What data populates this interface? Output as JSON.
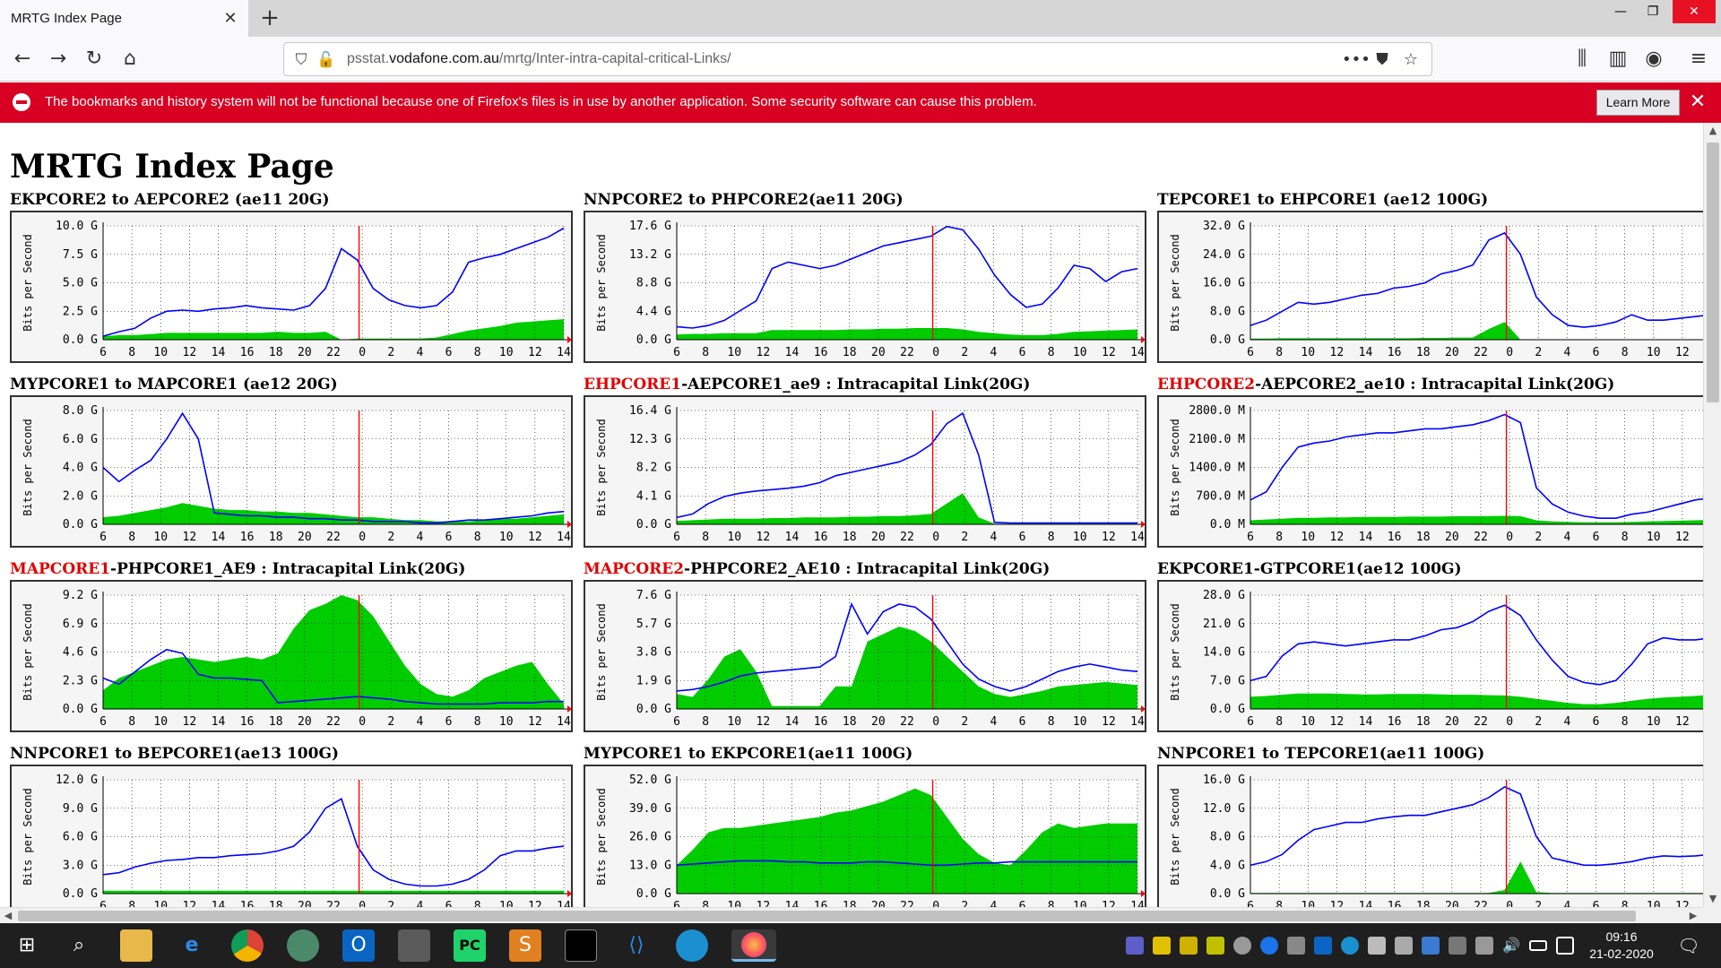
{
  "browser": {
    "tab_title": "MRTG Index Page",
    "url_prefix": "psstat.",
    "url_domain": "vodafone.com.au",
    "url_path": "/mrtg/Inter-intra-capital-critical-Links/"
  },
  "notification": {
    "message": "The bookmarks and history system will not be functional because one of Firefox's files is in use by another application. Some security software can cause this problem.",
    "button": "Learn More"
  },
  "page": {
    "title": "MRTG Index Page"
  },
  "axis": {
    "ylabel": "Bits per Second",
    "x_ticks": [
      "6",
      "8",
      "10",
      "12",
      "14",
      "16",
      "18",
      "20",
      "22",
      "0",
      "2",
      "4",
      "6",
      "8",
      "10",
      "12",
      "14"
    ]
  },
  "chart_data": [
    {
      "type": "area",
      "title_prefix": "",
      "title_rest": "EKPCORE2 to AEPCORE2 (ae11 20G)",
      "y_ticks": [
        "10.0 G",
        "7.5 G",
        "5.0 G",
        "2.5 G",
        "0.0 G"
      ],
      "series": [
        {
          "values": [
            0.3,
            0.7,
            1.0,
            1.9,
            2.5,
            2.6,
            2.5,
            2.7,
            2.8,
            3.0,
            2.8,
            2.7,
            2.6,
            3.0,
            4.5,
            8.0,
            7.0,
            4.5,
            3.5,
            3.0,
            2.8,
            3.0,
            4.2,
            6.8,
            7.2,
            7.5,
            8.0,
            8.5,
            9.0,
            9.8
          ]
        },
        {
          "values": [
            0.3,
            0.4,
            0.4,
            0.5,
            0.6,
            0.6,
            0.6,
            0.6,
            0.6,
            0.6,
            0.6,
            0.7,
            0.6,
            0.6,
            0.7,
            0.0,
            0.1,
            0.1,
            0.1,
            0.1,
            0.1,
            0.2,
            0.5,
            0.8,
            1.0,
            1.2,
            1.5,
            1.6,
            1.7,
            1.8
          ]
        }
      ]
    },
    {
      "type": "area",
      "title_prefix": "",
      "title_rest": "NNPCORE2 to PHPCORE2(ae11 20G)",
      "y_ticks": [
        "17.6 G",
        "13.2 G",
        "8.8 G",
        "4.4 G",
        "0.0 G"
      ],
      "series": [
        {
          "values": [
            2.0,
            1.8,
            2.2,
            3.0,
            4.5,
            6.0,
            11.0,
            12.0,
            11.5,
            11.0,
            11.5,
            12.5,
            13.5,
            14.5,
            15.0,
            15.5,
            16.0,
            17.5,
            17.0,
            14.0,
            10.0,
            7.0,
            5.0,
            5.5,
            8.0,
            11.5,
            11.0,
            9.0,
            10.5,
            11.0
          ]
        },
        {
          "values": [
            0.8,
            0.9,
            0.9,
            1.0,
            1.0,
            1.0,
            1.5,
            1.5,
            1.5,
            1.5,
            1.5,
            1.6,
            1.6,
            1.7,
            1.7,
            1.8,
            1.8,
            1.8,
            1.6,
            1.2,
            1.0,
            0.8,
            0.7,
            0.7,
            0.9,
            1.2,
            1.3,
            1.4,
            1.5,
            1.6
          ]
        }
      ]
    },
    {
      "type": "area",
      "title_prefix": "",
      "title_rest": "TEPCORE1 to EHPCORE1 (ae12 100G)",
      "y_ticks": [
        "32.0 G",
        "24.0 G",
        "16.0 G",
        "8.0 G",
        "0.0 G"
      ],
      "series": [
        {
          "values": [
            4.0,
            5.5,
            8.0,
            10.5,
            10.0,
            10.5,
            11.5,
            12.5,
            13.0,
            14.5,
            15.0,
            16.0,
            18.5,
            19.5,
            21.0,
            28.0,
            30.0,
            24.0,
            12.0,
            7.0,
            4.0,
            3.5,
            4.0,
            5.0,
            7.0,
            5.5,
            5.5,
            6.0,
            6.5,
            7.0
          ]
        },
        {
          "values": [
            0.3,
            0.3,
            0.4,
            0.4,
            0.4,
            0.4,
            0.4,
            0.4,
            0.4,
            0.4,
            0.4,
            0.5,
            0.5,
            0.6,
            0.6,
            3.0,
            5.0,
            0.0,
            0.0,
            0.0,
            0.0,
            0.0,
            0.0,
            0.0,
            0.0,
            0.0,
            0.0,
            0.0,
            0.0,
            0.0
          ]
        }
      ]
    },
    {
      "type": "area",
      "title_prefix": "",
      "title_rest": "MYPCORE1 to MAPCORE1 (ae12 20G)",
      "y_ticks": [
        "8.0 G",
        "6.0 G",
        "4.0 G",
        "2.0 G",
        "0.0 G"
      ],
      "series": [
        {
          "values": [
            4.0,
            3.0,
            3.8,
            4.5,
            6.0,
            7.8,
            6.0,
            0.8,
            0.7,
            0.6,
            0.6,
            0.5,
            0.5,
            0.4,
            0.4,
            0.3,
            0.3,
            0.2,
            0.2,
            0.2,
            0.1,
            0.1,
            0.2,
            0.3,
            0.3,
            0.4,
            0.5,
            0.6,
            0.8,
            0.9
          ]
        },
        {
          "values": [
            0.5,
            0.6,
            0.8,
            1.0,
            1.2,
            1.5,
            1.3,
            1.1,
            1.0,
            1.0,
            0.9,
            0.9,
            0.8,
            0.8,
            0.7,
            0.6,
            0.5,
            0.5,
            0.4,
            0.3,
            0.3,
            0.2,
            0.2,
            0.2,
            0.3,
            0.4,
            0.4,
            0.5,
            0.6,
            0.7
          ]
        }
      ]
    },
    {
      "type": "area",
      "title_prefix": "EHPCORE1",
      "title_rest": "-AEPCORE1_ae9 : Intracapital Link(20G)",
      "y_ticks": [
        "16.4 G",
        "12.3 G",
        "8.2 G",
        "4.1 G",
        "0.0 G"
      ],
      "series": [
        {
          "values": [
            1.0,
            1.5,
            3.0,
            4.0,
            4.5,
            4.8,
            5.0,
            5.2,
            5.5,
            6.0,
            7.0,
            7.5,
            8.0,
            8.5,
            9.0,
            10.0,
            11.5,
            14.5,
            16.0,
            10.0,
            0.3,
            0.2,
            0.2,
            0.2,
            0.2,
            0.2,
            0.2,
            0.2,
            0.2,
            0.2
          ]
        },
        {
          "values": [
            0.5,
            0.6,
            0.7,
            0.8,
            0.8,
            0.8,
            0.9,
            0.9,
            1.0,
            1.0,
            1.0,
            1.1,
            1.1,
            1.2,
            1.2,
            1.3,
            1.5,
            3.0,
            4.5,
            1.0,
            0.1,
            0.1,
            0.1,
            0.1,
            0.1,
            0.1,
            0.1,
            0.1,
            0.1,
            0.1
          ]
        }
      ]
    },
    {
      "type": "area",
      "title_prefix": "EHPCORE2",
      "title_rest": "-AEPCORE2_ae10 : Intracapital Link(20G)",
      "y_ticks": [
        "2800.0 M",
        "2100.0 M",
        "1400.0 M",
        "700.0 M",
        "0.0 M"
      ],
      "series": [
        {
          "values": [
            600,
            800,
            1400,
            1900,
            2000,
            2050,
            2150,
            2200,
            2250,
            2250,
            2300,
            2350,
            2350,
            2400,
            2450,
            2550,
            2700,
            2500,
            900,
            500,
            300,
            200,
            150,
            150,
            250,
            300,
            400,
            500,
            600,
            650
          ]
        },
        {
          "values": [
            100,
            120,
            140,
            160,
            160,
            170,
            170,
            180,
            180,
            180,
            190,
            190,
            190,
            200,
            200,
            200,
            210,
            200,
            100,
            70,
            60,
            50,
            50,
            50,
            60,
            70,
            80,
            90,
            100,
            110
          ]
        }
      ]
    },
    {
      "type": "area",
      "title_prefix": "MAPCORE1",
      "title_rest": "-PHPCORE1_AE9 : Intracapital Link(20G)",
      "y_ticks": [
        "9.2 G",
        "6.9 G",
        "4.6 G",
        "2.3 G",
        "0.0 G"
      ],
      "series": [
        {
          "values": [
            2.5,
            2.0,
            3.0,
            4.0,
            4.8,
            4.5,
            2.8,
            2.5,
            2.5,
            2.4,
            2.3,
            0.5,
            0.6,
            0.7,
            0.8,
            0.9,
            1.0,
            0.9,
            0.8,
            0.6,
            0.5,
            0.4,
            0.4,
            0.4,
            0.4,
            0.5,
            0.5,
            0.5,
            0.6,
            0.6
          ]
        },
        {
          "values": [
            1.5,
            2.5,
            3.0,
            3.5,
            4.0,
            4.2,
            4.0,
            3.8,
            4.0,
            4.2,
            4.0,
            4.5,
            6.5,
            8.0,
            8.5,
            9.2,
            8.8,
            7.5,
            5.5,
            3.5,
            2.0,
            1.2,
            1.0,
            1.5,
            2.5,
            3.0,
            3.5,
            3.8,
            2.0,
            0.4
          ]
        }
      ]
    },
    {
      "type": "area",
      "title_prefix": "MAPCORE2",
      "title_rest": "-PHPCORE2_AE10 : Intracapital Link(20G)",
      "y_ticks": [
        "7.6 G",
        "5.7 G",
        "3.8 G",
        "1.9 G",
        "0.0 G"
      ],
      "series": [
        {
          "values": [
            1.2,
            1.3,
            1.5,
            1.8,
            2.2,
            2.4,
            2.5,
            2.6,
            2.7,
            2.8,
            3.5,
            7.0,
            5.0,
            6.5,
            7.0,
            6.8,
            6.0,
            4.5,
            3.0,
            2.0,
            1.5,
            1.2,
            1.5,
            2.0,
            2.5,
            2.8,
            3.0,
            2.8,
            2.6,
            2.5
          ]
        },
        {
          "values": [
            1.0,
            0.8,
            2.0,
            3.5,
            4.0,
            2.5,
            0.2,
            0.2,
            0.2,
            0.2,
            1.5,
            1.5,
            4.5,
            5.0,
            5.5,
            5.2,
            4.5,
            3.5,
            2.5,
            1.5,
            1.0,
            0.8,
            1.0,
            1.2,
            1.5,
            1.6,
            1.7,
            1.8,
            1.7,
            1.6
          ]
        }
      ]
    },
    {
      "type": "area",
      "title_prefix": "",
      "title_rest": "EKPCORE1-GTPCORE1(ae12 100G)",
      "y_ticks": [
        "28.0 G",
        "21.0 G",
        "14.0 G",
        "7.0 G",
        "0.0 G"
      ],
      "series": [
        {
          "values": [
            7.0,
            8.0,
            13.0,
            16.0,
            16.5,
            16.0,
            15.5,
            16.0,
            16.5,
            17.0,
            17.0,
            18.0,
            19.5,
            20.0,
            21.5,
            24.0,
            25.5,
            23.0,
            17.0,
            12.0,
            8.0,
            6.5,
            6.0,
            7.0,
            11.0,
            16.0,
            17.5,
            17.0,
            17.0,
            17.5
          ]
        },
        {
          "values": [
            3.0,
            3.2,
            3.5,
            3.8,
            3.8,
            3.8,
            3.7,
            3.6,
            3.6,
            3.7,
            3.7,
            3.7,
            3.6,
            3.5,
            3.5,
            3.4,
            3.3,
            3.0,
            2.5,
            2.0,
            1.5,
            1.2,
            1.2,
            1.5,
            2.0,
            2.5,
            2.8,
            3.0,
            3.2,
            3.5
          ]
        }
      ]
    },
    {
      "type": "area",
      "title_prefix": "",
      "title_rest": "NNPCORE1 to BEPCORE1(ae13 100G)",
      "y_ticks": [
        "12.0 G",
        "9.0 G",
        "6.0 G",
        "3.0 G",
        "0.0 G"
      ],
      "series": [
        {
          "values": [
            2.0,
            2.2,
            2.8,
            3.2,
            3.5,
            3.6,
            3.8,
            3.8,
            4.0,
            4.1,
            4.2,
            4.5,
            5.0,
            6.5,
            9.0,
            10.0,
            5.0,
            2.5,
            1.5,
            1.0,
            0.8,
            0.8,
            1.0,
            1.5,
            2.5,
            4.0,
            4.5,
            4.5,
            4.8,
            5.0
          ]
        },
        {
          "values": [
            0.3,
            0.3,
            0.3,
            0.3,
            0.3,
            0.3,
            0.3,
            0.3,
            0.3,
            0.3,
            0.3,
            0.3,
            0.3,
            0.3,
            0.3,
            0.3,
            0.3,
            0.3,
            0.3,
            0.3,
            0.3,
            0.3,
            0.3,
            0.3,
            0.3,
            0.3,
            0.3,
            0.3,
            0.3,
            0.3
          ]
        }
      ]
    },
    {
      "type": "area",
      "title_prefix": "",
      "title_rest": "MYPCORE1 to EKPCORE1(ae11 100G)",
      "y_ticks": [
        "52.0 G",
        "39.0 G",
        "26.0 G",
        "13.0 G",
        "0.0 G"
      ],
      "series": [
        {
          "values": [
            13.0,
            13.5,
            14.0,
            14.5,
            15.0,
            15.0,
            15.0,
            14.5,
            14.5,
            14.0,
            14.0,
            14.0,
            14.5,
            14.5,
            14.0,
            13.5,
            13.0,
            13.0,
            13.5,
            14.0,
            14.0,
            14.5,
            14.5,
            14.5,
            14.5,
            14.5,
            14.5,
            14.5,
            14.5,
            14.5
          ]
        },
        {
          "values": [
            13.0,
            20.0,
            28.0,
            30.0,
            30.0,
            31.0,
            32.0,
            33.0,
            34.0,
            35.0,
            37.0,
            38.0,
            40.0,
            42.0,
            45.0,
            48.0,
            45.0,
            35.0,
            25.0,
            18.0,
            14.0,
            13.0,
            20.0,
            28.0,
            32.0,
            30.0,
            31.0,
            32.0,
            32.0,
            32.0
          ]
        }
      ]
    },
    {
      "type": "area",
      "title_prefix": "",
      "title_rest": "NNPCORE1 to TEPCORE1(ae11 100G)",
      "y_ticks": [
        "16.0 G",
        "12.0 G",
        "8.0 G",
        "4.0 G",
        "0.0 G"
      ],
      "series": [
        {
          "values": [
            4.0,
            4.5,
            5.5,
            7.5,
            9.0,
            9.5,
            10.0,
            10.0,
            10.5,
            10.8,
            11.0,
            11.0,
            11.5,
            12.0,
            12.5,
            13.5,
            15.0,
            14.0,
            8.0,
            5.0,
            4.5,
            4.0,
            4.0,
            4.2,
            4.5,
            5.0,
            5.3,
            5.2,
            5.3,
            5.5
          ]
        },
        {
          "values": [
            0.1,
            0.1,
            0.1,
            0.1,
            0.1,
            0.1,
            0.1,
            0.1,
            0.1,
            0.1,
            0.1,
            0.1,
            0.1,
            0.1,
            0.1,
            0.1,
            0.5,
            4.5,
            0.2,
            0.1,
            0.1,
            0.1,
            0.1,
            0.1,
            0.1,
            0.1,
            0.1,
            0.1,
            0.1,
            0.1
          ]
        }
      ]
    }
  ],
  "taskbar": {
    "time": "09:16",
    "date": "21-02-2020"
  },
  "colors": {
    "inbound": "#00cc00",
    "outbound": "#0000ff",
    "now_marker": "#ff0000"
  }
}
